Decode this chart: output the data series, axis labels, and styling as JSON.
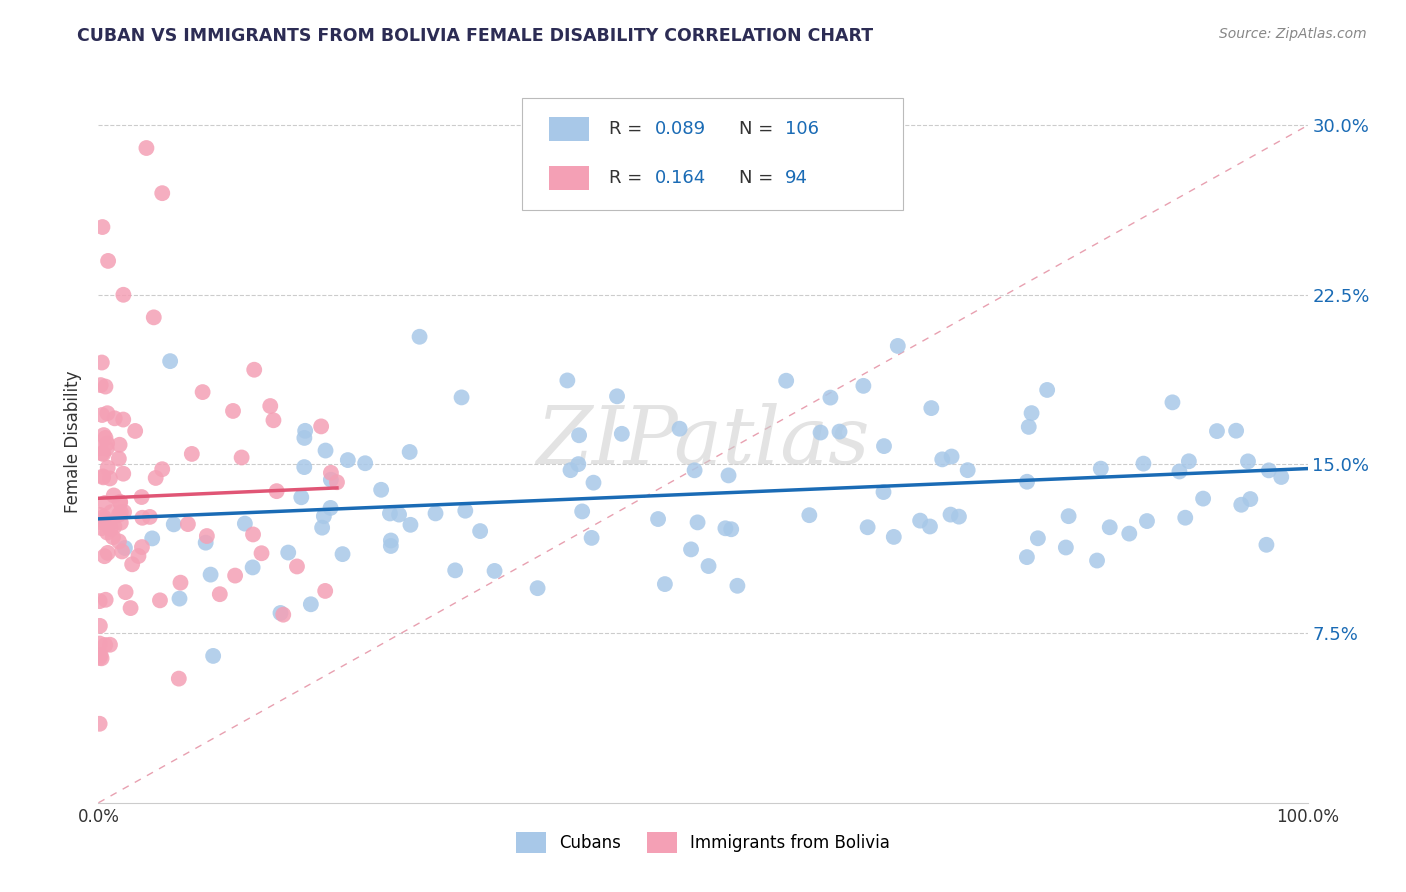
{
  "title": "CUBAN VS IMMIGRANTS FROM BOLIVIA FEMALE DISABILITY CORRELATION CHART",
  "source": "Source: ZipAtlas.com",
  "ylabel": "Female Disability",
  "xlim": [
    0,
    1
  ],
  "ylim": [
    0,
    0.32
  ],
  "yticks": [
    0.075,
    0.15,
    0.225,
    0.3
  ],
  "ytick_labels": [
    "7.5%",
    "15.0%",
    "22.5%",
    "30.0%"
  ],
  "xtick_labels": [
    "0.0%",
    "100.0%"
  ],
  "blue_color": "#a8c8e8",
  "pink_color": "#f4a0b5",
  "blue_line_color": "#1a6bb5",
  "pink_line_color": "#e05575",
  "diag_line_color": "#e8a0b0",
  "legend_text_color": "#1a6bb5",
  "watermark": "ZIPatlas",
  "title_color": "#2c2c54"
}
